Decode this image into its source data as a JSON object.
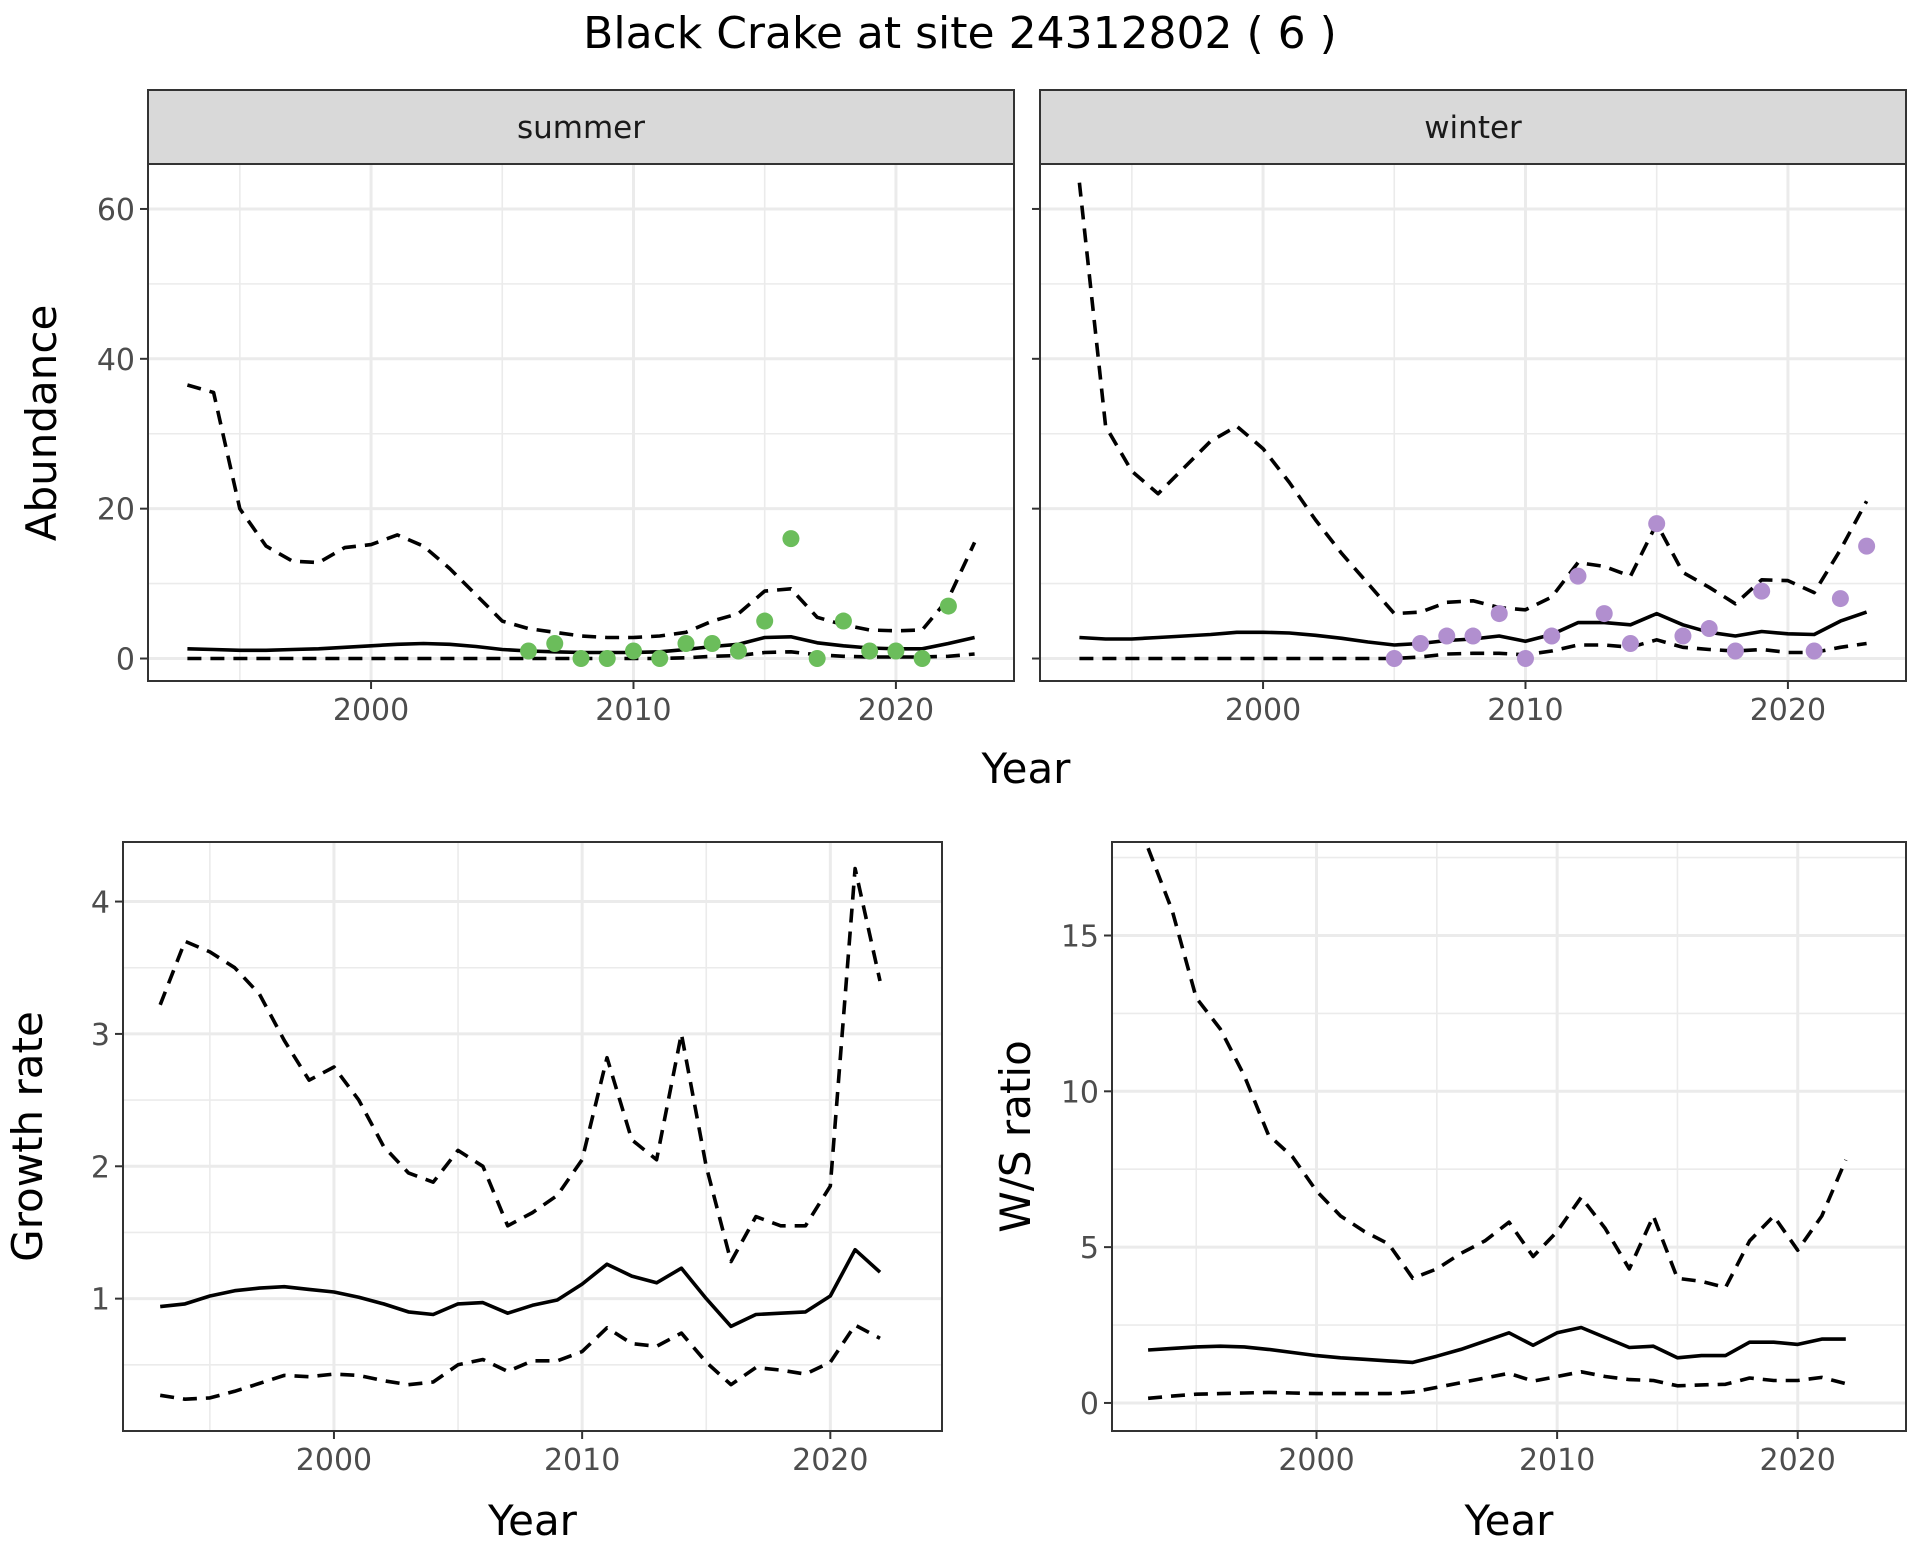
{
  "title": "Black Crake at site 24312802 ( 6 )",
  "chart_data": [
    {
      "type": "line",
      "panel": "summer",
      "facet_label": "summer",
      "xlabel": "Year",
      "ylabel": "Abundance",
      "xlim": [
        1991.5,
        2024.5
      ],
      "ylim": [
        -3,
        66
      ],
      "x_ticks": [
        2000,
        2010,
        2020
      ],
      "y_ticks": [
        0,
        20,
        40,
        60
      ],
      "grid": true,
      "point_color": "#6bbd5b",
      "years": [
        1993,
        1994,
        1995,
        1996,
        1997,
        1998,
        1999,
        2000,
        2001,
        2002,
        2003,
        2004,
        2005,
        2006,
        2007,
        2008,
        2009,
        2010,
        2011,
        2012,
        2013,
        2014,
        2015,
        2016,
        2017,
        2018,
        2019,
        2020,
        2021,
        2022,
        2023
      ],
      "series": [
        {
          "name": "mean",
          "values": [
            1.3,
            1.2,
            1.1,
            1.1,
            1.2,
            1.3,
            1.5,
            1.7,
            1.9,
            2.0,
            1.9,
            1.6,
            1.2,
            1.0,
            0.9,
            0.8,
            0.8,
            0.8,
            0.9,
            1.2,
            1.6,
            1.9,
            2.8,
            2.9,
            2.1,
            1.7,
            1.4,
            1.3,
            1.3,
            2.0,
            2.8
          ]
        },
        {
          "name": "upper",
          "values": [
            36.5,
            35.5,
            20.0,
            15.0,
            13.0,
            12.8,
            14.8,
            15.2,
            16.5,
            15.0,
            12.0,
            8.5,
            5.0,
            4.0,
            3.5,
            3.0,
            2.8,
            2.8,
            3.0,
            3.5,
            5.0,
            6.0,
            9.0,
            9.3,
            5.5,
            4.5,
            3.8,
            3.7,
            3.8,
            8.0,
            15.5
          ]
        },
        {
          "name": "lower",
          "values": [
            0.0,
            0.0,
            0.0,
            0.0,
            0.0,
            0.0,
            0.0,
            0.0,
            0.0,
            0.0,
            0.0,
            0.0,
            0.0,
            0.0,
            0.0,
            0.0,
            0.0,
            0.0,
            0.0,
            0.1,
            0.3,
            0.4,
            0.8,
            0.9,
            0.5,
            0.3,
            0.2,
            0.2,
            0.2,
            0.3,
            0.6
          ]
        }
      ],
      "points": {
        "x": [
          2006,
          2007,
          2008,
          2009,
          2010,
          2011,
          2012,
          2013,
          2014,
          2015,
          2016,
          2017,
          2018,
          2019,
          2020,
          2021,
          2022
        ],
        "y": [
          1,
          2,
          0,
          0,
          1,
          0,
          2,
          2,
          1,
          5,
          16,
          0,
          5,
          1,
          1,
          0,
          7
        ]
      }
    },
    {
      "type": "line",
      "panel": "winter",
      "facet_label": "winter",
      "xlabel": "Year",
      "ylabel": "Abundance",
      "xlim": [
        1991.5,
        2024.5
      ],
      "ylim": [
        -3,
        66
      ],
      "x_ticks": [
        2000,
        2010,
        2020
      ],
      "y_ticks": [
        0,
        20,
        40,
        60
      ],
      "grid": true,
      "point_color": "#b18fcf",
      "years": [
        1993,
        1994,
        1995,
        1996,
        1997,
        1998,
        1999,
        2000,
        2001,
        2002,
        2003,
        2004,
        2005,
        2006,
        2007,
        2008,
        2009,
        2010,
        2011,
        2012,
        2013,
        2014,
        2015,
        2016,
        2017,
        2018,
        2019,
        2020,
        2021,
        2022,
        2023
      ],
      "series": [
        {
          "name": "mean",
          "values": [
            2.8,
            2.6,
            2.6,
            2.8,
            3.0,
            3.2,
            3.5,
            3.5,
            3.4,
            3.1,
            2.7,
            2.2,
            1.8,
            2.0,
            2.4,
            2.6,
            3.0,
            2.3,
            3.2,
            4.8,
            4.8,
            4.5,
            6.0,
            4.5,
            3.5,
            3.0,
            3.6,
            3.3,
            3.2,
            5.0,
            6.2
          ]
        },
        {
          "name": "upper",
          "values": [
            63.5,
            31.0,
            25.0,
            22.0,
            25.5,
            29.0,
            31.0,
            28.0,
            23.5,
            18.5,
            14.0,
            10.0,
            6.0,
            6.2,
            7.5,
            7.7,
            6.8,
            6.5,
            8.2,
            12.8,
            12.3,
            11.0,
            18.0,
            11.5,
            9.5,
            7.3,
            10.5,
            10.4,
            8.8,
            14.5,
            21.0
          ]
        },
        {
          "name": "lower",
          "values": [
            0.0,
            0.0,
            0.0,
            0.0,
            0.0,
            0.0,
            0.0,
            0.0,
            0.0,
            0.0,
            0.0,
            0.0,
            0.0,
            0.2,
            0.6,
            0.7,
            0.7,
            0.5,
            1.0,
            1.8,
            1.8,
            1.5,
            2.5,
            1.5,
            1.2,
            1.0,
            1.2,
            0.8,
            0.8,
            1.5,
            2.0
          ]
        }
      ],
      "points": {
        "x": [
          2005,
          2006,
          2007,
          2008,
          2009,
          2010,
          2011,
          2012,
          2013,
          2014,
          2015,
          2016,
          2017,
          2018,
          2019,
          2021,
          2022,
          2023
        ],
        "y": [
          0,
          2,
          3,
          3,
          6,
          0,
          3,
          11,
          6,
          2,
          18,
          3,
          4,
          1,
          9,
          1,
          8,
          15
        ]
      }
    },
    {
      "type": "line",
      "panel": "growth",
      "xlabel": "Year",
      "ylabel": "Growth rate",
      "xlim": [
        1991.5,
        2024.5
      ],
      "ylim": [
        0.0,
        4.45
      ],
      "x_ticks": [
        2000,
        2010,
        2020
      ],
      "y_ticks": [
        1,
        2,
        3,
        4
      ],
      "grid": true,
      "years": [
        1993,
        1994,
        1995,
        1996,
        1997,
        1998,
        1999,
        2000,
        2001,
        2002,
        2003,
        2004,
        2005,
        2006,
        2007,
        2008,
        2009,
        2010,
        2011,
        2012,
        2013,
        2014,
        2015,
        2016,
        2017,
        2018,
        2019,
        2020,
        2021,
        2022
      ],
      "series": [
        {
          "name": "mean",
          "values": [
            0.94,
            0.96,
            1.02,
            1.06,
            1.08,
            1.09,
            1.07,
            1.05,
            1.01,
            0.96,
            0.9,
            0.88,
            0.96,
            0.97,
            0.89,
            0.95,
            0.99,
            1.11,
            1.26,
            1.17,
            1.12,
            1.23,
            1.0,
            0.79,
            0.88,
            0.89,
            0.9,
            1.02,
            1.37,
            1.2
          ]
        },
        {
          "name": "upper",
          "values": [
            3.22,
            3.7,
            3.62,
            3.5,
            3.3,
            2.95,
            2.65,
            2.75,
            2.5,
            2.15,
            1.95,
            1.88,
            2.12,
            2.0,
            1.55,
            1.65,
            1.78,
            2.05,
            2.82,
            2.2,
            2.05,
            3.0,
            2.0,
            1.28,
            1.62,
            1.55,
            1.55,
            1.85,
            4.25,
            3.4
          ]
        },
        {
          "name": "lower",
          "values": [
            0.27,
            0.24,
            0.25,
            0.3,
            0.36,
            0.42,
            0.41,
            0.43,
            0.42,
            0.38,
            0.35,
            0.37,
            0.5,
            0.54,
            0.45,
            0.53,
            0.53,
            0.6,
            0.78,
            0.66,
            0.64,
            0.74,
            0.52,
            0.35,
            0.48,
            0.46,
            0.43,
            0.52,
            0.8,
            0.7
          ]
        }
      ]
    },
    {
      "type": "line",
      "panel": "ratio",
      "xlabel": "Year",
      "ylabel": "W/S ratio",
      "xlim": [
        1991.5,
        2024.5
      ],
      "ylim": [
        -0.9,
        18.0
      ],
      "x_ticks": [
        2000,
        2010,
        2020
      ],
      "y_ticks": [
        0,
        5,
        10,
        15
      ],
      "grid": true,
      "years": [
        1993,
        1994,
        1995,
        1996,
        1997,
        1998,
        1999,
        2000,
        2001,
        2002,
        2003,
        2004,
        2005,
        2006,
        2007,
        2008,
        2009,
        2010,
        2011,
        2012,
        2013,
        2014,
        2015,
        2016,
        2017,
        2018,
        2019,
        2020,
        2021,
        2022
      ],
      "series": [
        {
          "name": "mean",
          "values": [
            1.7,
            1.75,
            1.8,
            1.82,
            1.8,
            1.72,
            1.62,
            1.52,
            1.45,
            1.4,
            1.35,
            1.3,
            1.5,
            1.72,
            1.98,
            2.25,
            1.85,
            2.25,
            2.42,
            2.1,
            1.78,
            1.82,
            1.45,
            1.52,
            1.52,
            1.95,
            1.95,
            1.88,
            2.05,
            2.05
          ]
        },
        {
          "name": "upper",
          "values": [
            17.8,
            15.8,
            13.0,
            12.0,
            10.5,
            8.6,
            7.9,
            6.8,
            6.0,
            5.5,
            5.1,
            4.0,
            4.3,
            4.8,
            5.2,
            5.8,
            4.7,
            5.5,
            6.6,
            5.6,
            4.3,
            6.0,
            4.0,
            3.9,
            3.7,
            5.2,
            6.0,
            4.9,
            6.0,
            7.8
          ]
        },
        {
          "name": "lower",
          "values": [
            0.15,
            0.22,
            0.28,
            0.3,
            0.32,
            0.34,
            0.32,
            0.3,
            0.3,
            0.3,
            0.3,
            0.35,
            0.5,
            0.65,
            0.8,
            0.95,
            0.7,
            0.85,
            1.0,
            0.85,
            0.75,
            0.72,
            0.55,
            0.58,
            0.6,
            0.8,
            0.72,
            0.72,
            0.82,
            0.62
          ]
        }
      ]
    }
  ]
}
